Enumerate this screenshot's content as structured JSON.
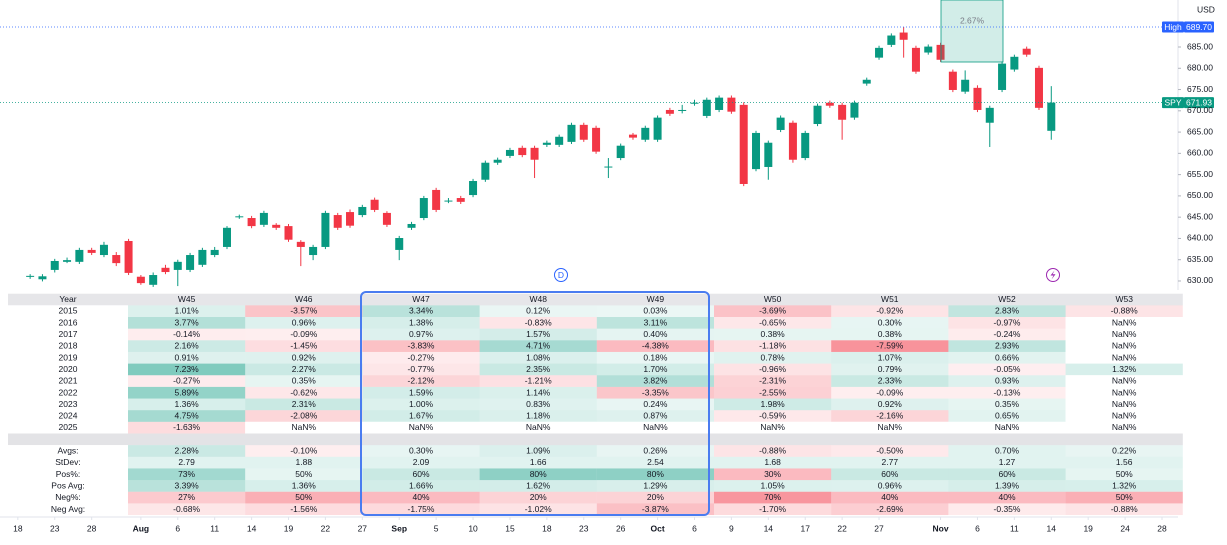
{
  "chart_data": {
    "type": "candlestick",
    "currency": "USD",
    "series": [
      {
        "name": "SPY",
        "up_color": "#089981",
        "down_color": "#f23645",
        "x": [
          -1,
          0,
          1,
          2,
          3,
          4,
          5,
          6,
          7,
          8,
          9,
          10,
          11,
          12,
          13,
          14,
          15,
          16,
          17,
          18,
          19,
          20,
          21,
          22,
          23,
          24,
          25,
          26,
          27,
          28,
          29,
          30,
          31,
          32,
          33,
          34,
          35,
          36,
          37,
          38,
          39,
          40,
          41,
          42,
          43,
          44,
          45,
          46,
          47,
          48,
          49,
          50,
          51,
          52,
          53,
          54,
          55,
          56,
          57,
          58,
          59,
          60,
          61,
          62,
          63,
          64,
          65,
          66,
          67,
          68,
          69,
          70,
          71,
          72,
          73,
          74,
          75,
          76,
          77,
          78,
          79,
          80,
          81,
          82
        ],
        "open": [
          631.0,
          630.4,
          632.6,
          634.5,
          634.5,
          637.3,
          636.1,
          636.1,
          639.4,
          631.0,
          629.1,
          633.1,
          632.6,
          632.6,
          633.8,
          636.1,
          638.0,
          645.0,
          644.8,
          643.2,
          643.2,
          642.9,
          639.2,
          636.1,
          638.0,
          645.5,
          646.2,
          645.5,
          649.1,
          646.0,
          637.3,
          642.5,
          644.8,
          651.4,
          648.8,
          649.5,
          650.2,
          653.8,
          657.8,
          659.4,
          661.3,
          661.3,
          662.0,
          662.0,
          662.7,
          666.7,
          666.0,
          656.8,
          658.9,
          664.4,
          663.2,
          663.2,
          670.2,
          670.0,
          671.8,
          668.8,
          670.2,
          673.1,
          671.4,
          656.3,
          656.8,
          665.5,
          667.2,
          658.9,
          666.9,
          671.9,
          671.4,
          668.4,
          676.4,
          682.5,
          685.5,
          688.4,
          684.8,
          683.7,
          685.5,
          679.2,
          674.5,
          675.4,
          667.2,
          674.9,
          679.7,
          684.6,
          680.1,
          665.3
        ],
        "high": [
          631.6,
          631.6,
          635.2,
          635.5,
          637.8,
          637.8,
          639.2,
          636.8,
          639.9,
          631.4,
          632.0,
          633.8,
          635.0,
          636.6,
          637.8,
          638.0,
          642.9,
          645.6,
          645.3,
          646.5,
          643.6,
          643.4,
          639.6,
          638.5,
          646.5,
          646.0,
          646.8,
          647.9,
          649.6,
          646.4,
          640.6,
          643.9,
          650.0,
          651.9,
          649.5,
          650.0,
          654.0,
          658.3,
          659.0,
          661.3,
          661.8,
          661.8,
          663.0,
          664.4,
          667.2,
          667.2,
          666.5,
          658.9,
          662.3,
          664.8,
          666.5,
          668.9,
          670.7,
          671.4,
          672.6,
          673.1,
          673.6,
          673.6,
          672.0,
          665.3,
          663.0,
          668.9,
          667.7,
          665.3,
          671.7,
          672.4,
          671.9,
          672.4,
          677.8,
          685.3,
          688.2,
          689.7,
          685.3,
          685.6,
          686.0,
          679.7,
          679.5,
          676.0,
          671.2,
          681.6,
          683.2,
          685.1,
          680.6,
          675.8
        ],
        "low": [
          630.5,
          629.9,
          632.0,
          634.2,
          634.0,
          636.1,
          635.6,
          633.5,
          631.4,
          629.1,
          628.6,
          631.6,
          628.8,
          632.1,
          633.3,
          635.6,
          637.5,
          644.6,
          642.4,
          642.7,
          642.0,
          639.2,
          633.5,
          634.9,
          637.5,
          642.0,
          642.5,
          645.0,
          646.2,
          642.7,
          634.9,
          642.0,
          644.3,
          646.2,
          648.3,
          648.1,
          649.7,
          653.3,
          657.3,
          658.9,
          659.1,
          654.2,
          661.5,
          661.5,
          662.2,
          662.7,
          659.9,
          654.2,
          658.4,
          663.2,
          662.7,
          662.7,
          668.8,
          669.4,
          671.2,
          668.3,
          669.7,
          669.3,
          652.3,
          655.8,
          653.8,
          665.0,
          657.8,
          658.4,
          666.4,
          670.7,
          663.2,
          667.9,
          675.9,
          682.0,
          685.0,
          682.5,
          678.7,
          683.2,
          681.5,
          674.4,
          674.0,
          669.7,
          661.5,
          674.4,
          679.2,
          682.7,
          670.2,
          663.2
        ],
        "close": [
          631.2,
          631.1,
          634.7,
          634.9,
          637.3,
          636.6,
          638.5,
          634.2,
          631.9,
          629.5,
          631.4,
          632.1,
          634.5,
          636.1,
          637.3,
          637.3,
          642.5,
          645.2,
          642.9,
          646.0,
          642.5,
          639.7,
          638.0,
          638.0,
          646.0,
          642.5,
          643.0,
          647.4,
          646.7,
          643.2,
          640.1,
          643.4,
          649.5,
          646.7,
          648.9,
          648.6,
          653.5,
          657.8,
          658.5,
          660.8,
          659.6,
          658.5,
          662.5,
          663.9,
          666.7,
          663.2,
          660.4,
          656.9,
          661.8,
          663.7,
          666.0,
          668.4,
          669.3,
          670.2,
          671.9,
          672.6,
          673.1,
          669.8,
          652.8,
          664.8,
          662.5,
          668.4,
          658.5,
          664.8,
          671.2,
          671.2,
          667.9,
          671.9,
          677.3,
          684.8,
          687.7,
          686.7,
          679.2,
          685.1,
          682.0,
          674.9,
          677.3,
          670.2,
          670.7,
          681.1,
          682.7,
          683.2,
          670.7,
          671.93
        ]
      }
    ],
    "xlim": [
      -2.8,
      92.3
    ],
    "xticks": [
      {
        "value": -2,
        "label": "18"
      },
      {
        "value": 1,
        "label": "23"
      },
      {
        "value": 4,
        "label": "28"
      },
      {
        "value": 8,
        "label": "Aug"
      },
      {
        "value": 11,
        "label": "6"
      },
      {
        "value": 14,
        "label": "11"
      },
      {
        "value": 17,
        "label": "14"
      },
      {
        "value": 20,
        "label": "19"
      },
      {
        "value": 23,
        "label": "22"
      },
      {
        "value": 26,
        "label": "27"
      },
      {
        "value": 29,
        "label": "Sep"
      },
      {
        "value": 32,
        "label": "5"
      },
      {
        "value": 35,
        "label": "10"
      },
      {
        "value": 38,
        "label": "15"
      },
      {
        "value": 41,
        "label": "18"
      },
      {
        "value": 44,
        "label": "23"
      },
      {
        "value": 47,
        "label": "26"
      },
      {
        "value": 50,
        "label": "Oct"
      },
      {
        "value": 53,
        "label": "6"
      },
      {
        "value": 56,
        "label": "9"
      },
      {
        "value": 59,
        "label": "14"
      },
      {
        "value": 62,
        "label": "17"
      },
      {
        "value": 65,
        "label": "22"
      },
      {
        "value": 68,
        "label": "27"
      },
      {
        "value": 73,
        "label": "Nov"
      },
      {
        "value": 76,
        "label": "6"
      },
      {
        "value": 79,
        "label": "11"
      },
      {
        "value": 82,
        "label": "14"
      },
      {
        "value": 85,
        "label": "19"
      },
      {
        "value": 88,
        "label": "24"
      },
      {
        "value": 91,
        "label": "28"
      }
    ],
    "ylim": [
      628.35,
      696.05
    ],
    "yticks": [
      {
        "value": 630,
        "label": "630.00"
      },
      {
        "value": 635,
        "label": "635.00"
      },
      {
        "value": 640,
        "label": "640.00"
      },
      {
        "value": 645,
        "label": "645.00"
      },
      {
        "value": 650,
        "label": "650.00"
      },
      {
        "value": 655,
        "label": "655.00"
      },
      {
        "value": 660,
        "label": "660.00"
      },
      {
        "value": 665,
        "label": "665.00"
      },
      {
        "value": 670,
        "label": "670.00"
      },
      {
        "value": 675,
        "label": "675.00"
      },
      {
        "value": 680,
        "label": "680.00"
      },
      {
        "value": 685,
        "label": "685.00"
      }
    ],
    "high_marker": {
      "label": "High",
      "value": 689.7,
      "value_label": "689.70",
      "color": "#2962ff"
    },
    "last_marker": {
      "value": 671.93,
      "color": "#089981"
    },
    "measure": {
      "value": 2.67,
      "value_label": "2.67%"
    },
    "event": "D"
  },
  "table": {
    "header": [
      "Year",
      "W45",
      "W46",
      "W47",
      "W48",
      "W49",
      "W50",
      "W51",
      "W52",
      "W53"
    ],
    "years": [
      [
        "2015",
        "1.01%",
        "-3.57%",
        "3.34%",
        "0.12%",
        "0.03%",
        "-3.69%",
        "-0.92%",
        "2.83%",
        "-0.88%"
      ],
      [
        "2016",
        "3.77%",
        "0.96%",
        "1.38%",
        "-0.83%",
        "3.11%",
        "-0.65%",
        "0.30%",
        "-0.97%",
        "NaN%"
      ],
      [
        "2017",
        "-0.14%",
        "-0.09%",
        "0.97%",
        "1.57%",
        "0.40%",
        "0.38%",
        "0.38%",
        "-0.24%",
        "NaN%"
      ],
      [
        "2018",
        "2.16%",
        "-1.45%",
        "-3.83%",
        "4.71%",
        "-4.38%",
        "-1.18%",
        "-7.59%",
        "2.93%",
        "NaN%"
      ],
      [
        "2019",
        "0.91%",
        "0.92%",
        "-0.27%",
        "1.08%",
        "0.18%",
        "0.78%",
        "1.07%",
        "0.66%",
        "NaN%"
      ],
      [
        "2020",
        "7.23%",
        "2.27%",
        "-0.77%",
        "2.35%",
        "1.70%",
        "-0.96%",
        "0.79%",
        "-0.05%",
        "1.32%"
      ],
      [
        "2021",
        "-0.27%",
        "0.35%",
        "-2.12%",
        "-1.21%",
        "3.82%",
        "-2.31%",
        "2.33%",
        "0.93%",
        "NaN%"
      ],
      [
        "2022",
        "5.89%",
        "-0.62%",
        "1.59%",
        "1.14%",
        "-3.35%",
        "-2.55%",
        "-0.09%",
        "-0.13%",
        "NaN%"
      ],
      [
        "2023",
        "1.36%",
        "2.31%",
        "1.00%",
        "0.83%",
        "0.24%",
        "1.98%",
        "0.92%",
        "0.35%",
        "NaN%"
      ],
      [
        "2024",
        "4.75%",
        "-2.08%",
        "1.67%",
        "1.18%",
        "0.87%",
        "-0.59%",
        "-2.16%",
        "0.65%",
        "NaN%"
      ],
      [
        "2025",
        "-1.63%",
        "NaN%",
        "NaN%",
        "NaN%",
        "NaN%",
        "NaN%",
        "NaN%",
        "NaN%",
        "NaN%"
      ]
    ],
    "stats": [
      [
        "Avgs:",
        "2.28%",
        "-0.10%",
        "0.30%",
        "1.09%",
        "0.26%",
        "-0.88%",
        "-0.50%",
        "0.70%",
        "0.22%"
      ],
      [
        "StDev:",
        "2.79",
        "1.88",
        "2.09",
        "1.66",
        "2.54",
        "1.68",
        "2.77",
        "1.27",
        "1.56"
      ],
      [
        "Pos%:",
        "73%",
        "50%",
        "60%",
        "80%",
        "80%",
        "30%",
        "60%",
        "60%",
        "50%"
      ],
      [
        "Pos Avg:",
        "3.39%",
        "1.36%",
        "1.66%",
        "1.62%",
        "1.29%",
        "1.05%",
        "0.96%",
        "1.39%",
        "1.32%"
      ],
      [
        "Neg%:",
        "27%",
        "50%",
        "40%",
        "20%",
        "20%",
        "70%",
        "40%",
        "40%",
        "50%"
      ],
      [
        "Neg Avg:",
        "-0.68%",
        "-1.56%",
        "-1.75%",
        "-1.02%",
        "-3.87%",
        "-1.70%",
        "-2.69%",
        "-0.35%",
        "-0.88%"
      ]
    ]
  }
}
